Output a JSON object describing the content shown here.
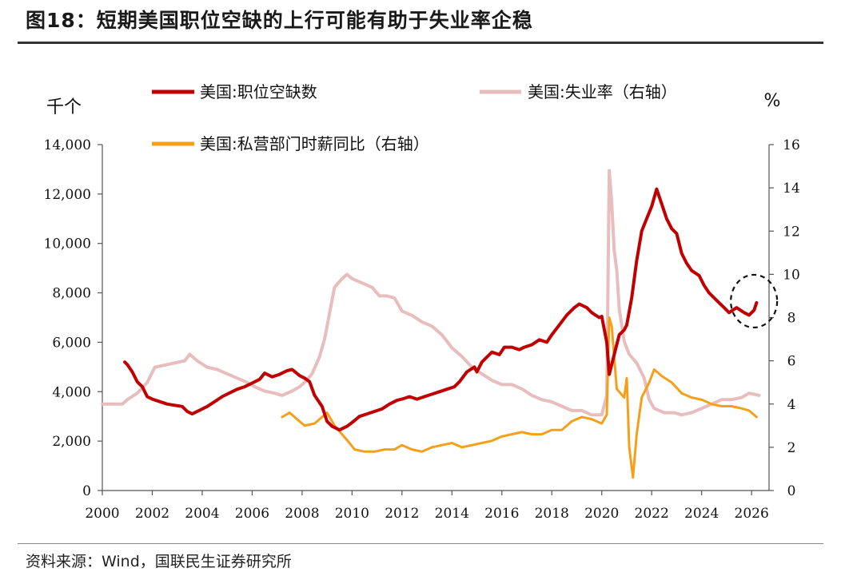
{
  "header": {
    "title": "图18：短期美国职位空缺的上行可能有助于失业率企稳"
  },
  "footer": {
    "source": "资料来源：Wind，国联民生证券研究所"
  },
  "colors": {
    "job_openings": "#C00000",
    "unemployment": "#E8BDBD",
    "wages": "#F5A01A",
    "axis": "#555555",
    "highlight_circle": "#111111"
  },
  "chart_data": {
    "type": "line",
    "title": "",
    "left_axis": {
      "unit": "千个",
      "ylim": [
        0,
        14000
      ],
      "ticks": [
        0,
        2000,
        4000,
        6000,
        8000,
        10000,
        12000,
        14000
      ],
      "tick_labels": [
        "0",
        "2,000",
        "4,000",
        "6,000",
        "8,000",
        "10,000",
        "12,000",
        "14,000"
      ]
    },
    "right_axis": {
      "unit": "%",
      "ylim": [
        0,
        16
      ],
      "ticks": [
        0,
        2,
        4,
        6,
        8,
        10,
        12,
        14,
        16
      ],
      "tick_labels": [
        "0",
        "2",
        "4",
        "6",
        "8",
        "10",
        "12",
        "14",
        "16"
      ]
    },
    "x_axis": {
      "xlim": [
        2000,
        2026.7
      ],
      "ticks": [
        2000,
        2002,
        2004,
        2006,
        2008,
        2010,
        2012,
        2014,
        2016,
        2018,
        2020,
        2022,
        2024,
        2026
      ],
      "tick_labels": [
        "2000",
        "2002",
        "2004",
        "2006",
        "2008",
        "2010",
        "2012",
        "2014",
        "2016",
        "2018",
        "2020",
        "2022",
        "2024",
        "2026"
      ]
    },
    "legend_position": "top",
    "grid": false,
    "annotation": {
      "type": "dashed-circle",
      "x": 2026.0,
      "y_left": 7600
    },
    "series": [
      {
        "name": "美国:职位空缺数",
        "axis": "left",
        "points": [
          [
            2000.9,
            5200
          ],
          [
            2001.0,
            5100
          ],
          [
            2001.2,
            4800
          ],
          [
            2001.4,
            4400
          ],
          [
            2001.6,
            4200
          ],
          [
            2001.8,
            3800
          ],
          [
            2002.0,
            3700
          ],
          [
            2002.3,
            3600
          ],
          [
            2002.6,
            3500
          ],
          [
            2002.9,
            3450
          ],
          [
            2003.2,
            3400
          ],
          [
            2003.4,
            3200
          ],
          [
            2003.6,
            3100
          ],
          [
            2003.9,
            3250
          ],
          [
            2004.2,
            3400
          ],
          [
            2004.5,
            3600
          ],
          [
            2004.8,
            3800
          ],
          [
            2005.1,
            3950
          ],
          [
            2005.4,
            4100
          ],
          [
            2005.7,
            4200
          ],
          [
            2006.0,
            4350
          ],
          [
            2006.3,
            4500
          ],
          [
            2006.5,
            4750
          ],
          [
            2006.8,
            4600
          ],
          [
            2007.1,
            4700
          ],
          [
            2007.4,
            4850
          ],
          [
            2007.6,
            4900
          ],
          [
            2007.9,
            4650
          ],
          [
            2008.1,
            4550
          ],
          [
            2008.3,
            4400
          ],
          [
            2008.5,
            3850
          ],
          [
            2008.8,
            3400
          ],
          [
            2009.0,
            2800
          ],
          [
            2009.2,
            2600
          ],
          [
            2009.5,
            2450
          ],
          [
            2009.8,
            2600
          ],
          [
            2010.0,
            2750
          ],
          [
            2010.3,
            3000
          ],
          [
            2010.6,
            3100
          ],
          [
            2010.9,
            3200
          ],
          [
            2011.2,
            3300
          ],
          [
            2011.5,
            3500
          ],
          [
            2011.8,
            3650
          ],
          [
            2012.0,
            3700
          ],
          [
            2012.3,
            3800
          ],
          [
            2012.6,
            3700
          ],
          [
            2012.9,
            3800
          ],
          [
            2013.2,
            3900
          ],
          [
            2013.5,
            4000
          ],
          [
            2013.8,
            4100
          ],
          [
            2014.1,
            4200
          ],
          [
            2014.3,
            4400
          ],
          [
            2014.6,
            4800
          ],
          [
            2014.9,
            5000
          ],
          [
            2015.0,
            4800
          ],
          [
            2015.2,
            5200
          ],
          [
            2015.4,
            5400
          ],
          [
            2015.6,
            5600
          ],
          [
            2015.9,
            5500
          ],
          [
            2016.1,
            5800
          ],
          [
            2016.4,
            5800
          ],
          [
            2016.7,
            5700
          ],
          [
            2016.9,
            5800
          ],
          [
            2017.2,
            5900
          ],
          [
            2017.5,
            6100
          ],
          [
            2017.8,
            6000
          ],
          [
            2018.0,
            6300
          ],
          [
            2018.3,
            6700
          ],
          [
            2018.6,
            7100
          ],
          [
            2018.9,
            7400
          ],
          [
            2019.1,
            7550
          ],
          [
            2019.4,
            7400
          ],
          [
            2019.6,
            7200
          ],
          [
            2019.9,
            7000
          ],
          [
            2020.0,
            7050
          ],
          [
            2020.2,
            6000
          ],
          [
            2020.3,
            4700
          ],
          [
            2020.5,
            5500
          ],
          [
            2020.7,
            6300
          ],
          [
            2020.9,
            6500
          ],
          [
            2021.0,
            6700
          ],
          [
            2021.2,
            7800
          ],
          [
            2021.4,
            9300
          ],
          [
            2021.6,
            10500
          ],
          [
            2021.8,
            11000
          ],
          [
            2022.0,
            11500
          ],
          [
            2022.2,
            12200
          ],
          [
            2022.4,
            11600
          ],
          [
            2022.6,
            11000
          ],
          [
            2022.8,
            10600
          ],
          [
            2023.0,
            10400
          ],
          [
            2023.2,
            9600
          ],
          [
            2023.4,
            9200
          ],
          [
            2023.6,
            8900
          ],
          [
            2023.9,
            8700
          ],
          [
            2024.1,
            8300
          ],
          [
            2024.3,
            8000
          ],
          [
            2024.6,
            7700
          ],
          [
            2024.9,
            7400
          ],
          [
            2025.1,
            7200
          ],
          [
            2025.4,
            7400
          ],
          [
            2025.7,
            7200
          ],
          [
            2025.9,
            7100
          ],
          [
            2026.1,
            7300
          ],
          [
            2026.2,
            7600
          ]
        ]
      },
      {
        "name": "美国:失业率（右轴）",
        "axis": "right",
        "points": [
          [
            2000.0,
            4.0
          ],
          [
            2000.4,
            4.0
          ],
          [
            2000.8,
            4.0
          ],
          [
            2001.0,
            4.2
          ],
          [
            2001.4,
            4.5
          ],
          [
            2001.8,
            5.0
          ],
          [
            2002.1,
            5.7
          ],
          [
            2002.5,
            5.8
          ],
          [
            2002.9,
            5.9
          ],
          [
            2003.3,
            6.0
          ],
          [
            2003.5,
            6.3
          ],
          [
            2003.8,
            6.0
          ],
          [
            2004.2,
            5.7
          ],
          [
            2004.6,
            5.6
          ],
          [
            2005.0,
            5.4
          ],
          [
            2005.4,
            5.2
          ],
          [
            2005.8,
            5.0
          ],
          [
            2006.1,
            4.8
          ],
          [
            2006.5,
            4.6
          ],
          [
            2006.9,
            4.5
          ],
          [
            2007.2,
            4.4
          ],
          [
            2007.6,
            4.6
          ],
          [
            2007.9,
            4.8
          ],
          [
            2008.1,
            5.0
          ],
          [
            2008.4,
            5.4
          ],
          [
            2008.7,
            6.2
          ],
          [
            2008.9,
            7.0
          ],
          [
            2009.1,
            8.2
          ],
          [
            2009.3,
            9.4
          ],
          [
            2009.6,
            9.8
          ],
          [
            2009.8,
            10.0
          ],
          [
            2010.0,
            9.8
          ],
          [
            2010.4,
            9.6
          ],
          [
            2010.8,
            9.4
          ],
          [
            2011.1,
            9.0
          ],
          [
            2011.4,
            9.0
          ],
          [
            2011.7,
            8.9
          ],
          [
            2012.0,
            8.3
          ],
          [
            2012.4,
            8.1
          ],
          [
            2012.8,
            7.8
          ],
          [
            2013.2,
            7.6
          ],
          [
            2013.6,
            7.2
          ],
          [
            2014.0,
            6.6
          ],
          [
            2014.4,
            6.2
          ],
          [
            2014.8,
            5.7
          ],
          [
            2015.2,
            5.4
          ],
          [
            2015.6,
            5.1
          ],
          [
            2016.0,
            4.9
          ],
          [
            2016.4,
            4.9
          ],
          [
            2016.8,
            4.7
          ],
          [
            2017.2,
            4.4
          ],
          [
            2017.6,
            4.2
          ],
          [
            2018.0,
            4.1
          ],
          [
            2018.4,
            3.9
          ],
          [
            2018.8,
            3.7
          ],
          [
            2019.2,
            3.7
          ],
          [
            2019.6,
            3.5
          ],
          [
            2020.0,
            3.5
          ],
          [
            2020.2,
            4.4
          ],
          [
            2020.3,
            14.8
          ],
          [
            2020.4,
            13.3
          ],
          [
            2020.5,
            11.1
          ],
          [
            2020.6,
            10.2
          ],
          [
            2020.7,
            8.4
          ],
          [
            2020.9,
            6.9
          ],
          [
            2021.1,
            6.3
          ],
          [
            2021.4,
            5.9
          ],
          [
            2021.7,
            5.2
          ],
          [
            2021.9,
            4.2
          ],
          [
            2022.1,
            3.8
          ],
          [
            2022.5,
            3.6
          ],
          [
            2022.9,
            3.6
          ],
          [
            2023.2,
            3.5
          ],
          [
            2023.6,
            3.6
          ],
          [
            2024.0,
            3.8
          ],
          [
            2024.4,
            4.0
          ],
          [
            2024.8,
            4.2
          ],
          [
            2025.2,
            4.2
          ],
          [
            2025.6,
            4.3
          ],
          [
            2025.9,
            4.5
          ],
          [
            2026.3,
            4.4
          ]
        ]
      },
      {
        "name": "美国:私营部门时薪同比（右轴）",
        "axis": "right",
        "points": [
          [
            2007.2,
            3.4
          ],
          [
            2007.5,
            3.6
          ],
          [
            2007.8,
            3.3
          ],
          [
            2008.1,
            3.0
          ],
          [
            2008.5,
            3.1
          ],
          [
            2008.8,
            3.4
          ],
          [
            2009.0,
            3.6
          ],
          [
            2009.3,
            3.0
          ],
          [
            2009.6,
            2.6
          ],
          [
            2009.9,
            2.2
          ],
          [
            2010.1,
            1.9
          ],
          [
            2010.5,
            1.8
          ],
          [
            2010.9,
            1.8
          ],
          [
            2011.3,
            1.9
          ],
          [
            2011.7,
            1.9
          ],
          [
            2012.0,
            2.1
          ],
          [
            2012.4,
            1.9
          ],
          [
            2012.8,
            1.8
          ],
          [
            2013.2,
            2.0
          ],
          [
            2013.6,
            2.1
          ],
          [
            2014.0,
            2.2
          ],
          [
            2014.4,
            2.0
          ],
          [
            2014.8,
            2.1
          ],
          [
            2015.2,
            2.2
          ],
          [
            2015.6,
            2.3
          ],
          [
            2016.0,
            2.5
          ],
          [
            2016.4,
            2.6
          ],
          [
            2016.8,
            2.7
          ],
          [
            2017.2,
            2.6
          ],
          [
            2017.6,
            2.6
          ],
          [
            2018.0,
            2.8
          ],
          [
            2018.4,
            2.8
          ],
          [
            2018.8,
            3.2
          ],
          [
            2019.2,
            3.4
          ],
          [
            2019.6,
            3.3
          ],
          [
            2020.0,
            3.1
          ],
          [
            2020.2,
            3.5
          ],
          [
            2020.3,
            8.0
          ],
          [
            2020.4,
            7.6
          ],
          [
            2020.6,
            4.7
          ],
          [
            2020.9,
            4.3
          ],
          [
            2021.0,
            5.2
          ],
          [
            2021.1,
            2.0
          ],
          [
            2021.25,
            0.6
          ],
          [
            2021.4,
            2.6
          ],
          [
            2021.6,
            4.3
          ],
          [
            2021.9,
            5.0
          ],
          [
            2022.1,
            5.6
          ],
          [
            2022.4,
            5.3
          ],
          [
            2022.8,
            5.0
          ],
          [
            2023.2,
            4.5
          ],
          [
            2023.6,
            4.3
          ],
          [
            2024.0,
            4.2
          ],
          [
            2024.4,
            4.0
          ],
          [
            2024.8,
            3.9
          ],
          [
            2025.2,
            3.9
          ],
          [
            2025.6,
            3.8
          ],
          [
            2025.9,
            3.7
          ],
          [
            2026.2,
            3.4
          ]
        ]
      }
    ]
  }
}
